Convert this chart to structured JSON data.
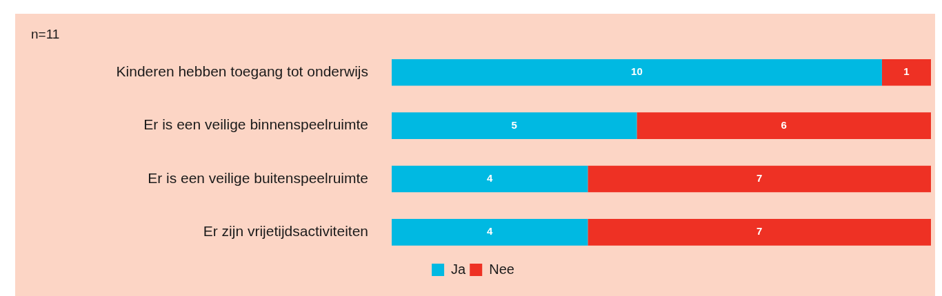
{
  "chart_data": {
    "type": "bar",
    "orientation": "horizontal",
    "stacked": true,
    "data_labels": true,
    "legend": "bottom",
    "grid": false,
    "tick_labels": "y",
    "annotations": [
      "n=11"
    ],
    "categories": [
      "Kinderen hebben toegang tot onderwijs",
      "Er is een veilige binnenspeelruimte",
      "Er is een veilige buitenspeelruimte",
      "Er zijn vrijetijdsactiviteiten"
    ],
    "xlim": [
      0,
      11
    ],
    "series": [
      {
        "name": "Ja",
        "color": "#00b9e2",
        "values": [
          10,
          5,
          4,
          4
        ]
      },
      {
        "name": "Nee",
        "color": "#ee3124",
        "values": [
          1,
          6,
          7,
          7
        ]
      }
    ]
  }
}
